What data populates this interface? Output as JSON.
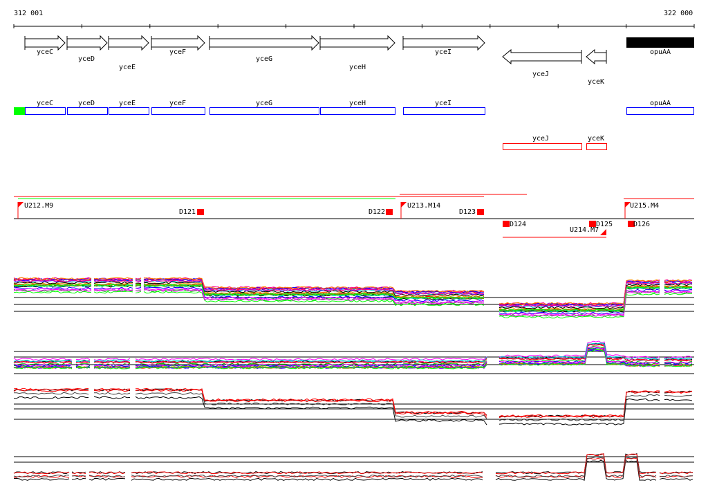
{
  "ruler": {
    "start": "312 001",
    "end": "322 000"
  },
  "genes": [
    {
      "name": "yceC",
      "strand": "+"
    },
    {
      "name": "yceD",
      "strand": "+"
    },
    {
      "name": "yceE",
      "strand": "+"
    },
    {
      "name": "yceF",
      "strand": "+"
    },
    {
      "name": "yceG",
      "strand": "+"
    },
    {
      "name": "yceH",
      "strand": "+"
    },
    {
      "name": "yceI",
      "strand": "+"
    },
    {
      "name": "yceJ",
      "strand": "-"
    },
    {
      "name": "yceK",
      "strand": "-"
    },
    {
      "name": "opuAA",
      "strand": "+"
    }
  ],
  "blue_boxes": [
    "yceC",
    "yceD",
    "yceE",
    "yceF",
    "yceG",
    "yceH",
    "yceI",
    "opuAA"
  ],
  "red_boxes": [
    "yceJ",
    "yceK"
  ],
  "features": [
    "U212.M9",
    "D121",
    "D122",
    "U213.M14",
    "D123",
    "D124",
    "U214.M7",
    "D125",
    "U215.M4",
    "D126"
  ],
  "colors": {
    "blue": "#0000ff",
    "red": "#ff0000",
    "green": "#00ff00",
    "black": "#000000"
  }
}
